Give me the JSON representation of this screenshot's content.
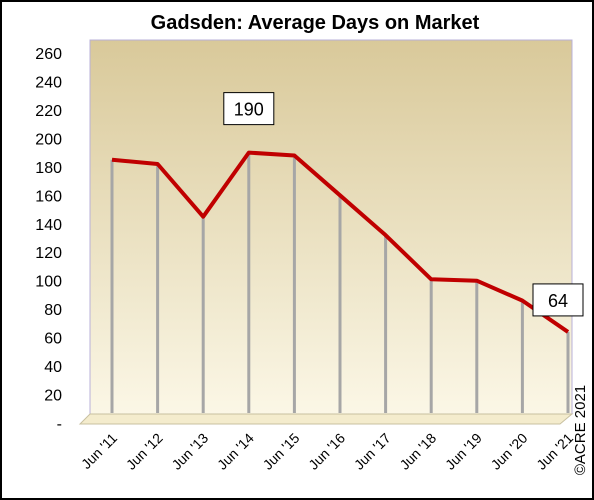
{
  "chart_data": {
    "type": "line",
    "title": "Gadsden: Average Days on Market",
    "categories": [
      "Jun '11",
      "Jun '12",
      "Jun '13",
      "Jun '14",
      "Jun '15",
      "Jun '16",
      "Jun '17",
      "Jun '18",
      "Jun '19",
      "Jun '20",
      "Jun '21"
    ],
    "series": [
      {
        "name": "Average Days on Market",
        "color": "#c00000",
        "values": [
          185,
          182,
          145,
          190,
          188,
          160,
          132,
          101,
          100,
          86,
          64
        ],
        "value_labels": [
          null,
          null,
          null,
          "190",
          null,
          null,
          null,
          null,
          null,
          null,
          "64"
        ]
      }
    ],
    "ylim": [
      0,
      260
    ],
    "yticks": [
      {
        "value": 0,
        "label": "-"
      },
      20,
      40,
      60,
      80,
      100,
      120,
      140,
      160,
      180,
      200,
      220,
      240,
      260
    ],
    "drop_lines": true,
    "credit": "©ACRE 2021"
  }
}
